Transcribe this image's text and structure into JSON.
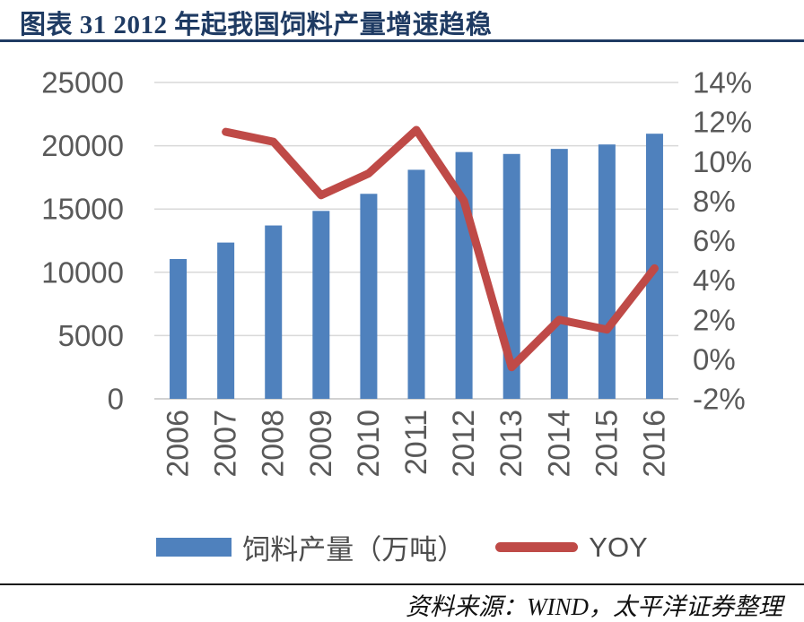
{
  "header": {
    "title": "图表 31 2012 年起我国饲料产量增速趋稳"
  },
  "legend": {
    "bars_label": "饲料产量（万吨）",
    "line_label": "YOY"
  },
  "footer": {
    "source": "资料来源：WIND，太平洋证券整理"
  },
  "colors": {
    "bar": "#4f81bd",
    "line": "#bf4a47",
    "title": "#1f3b63",
    "axis_text": "#595959",
    "gridline": "#d9d9d9"
  },
  "chart_data": {
    "type": "bar+line",
    "title": "图表 31 2012 年起我国饲料产量增速趋稳",
    "categories": [
      "2006",
      "2007",
      "2008",
      "2009",
      "2010",
      "2011",
      "2012",
      "2013",
      "2014",
      "2015",
      "2016"
    ],
    "series": [
      {
        "name": "饲料产量（万吨）",
        "type": "bar",
        "y_axis": "left",
        "color": "#4f81bd",
        "values": [
          11050,
          12350,
          13700,
          14850,
          16200,
          18100,
          19500,
          19350,
          19750,
          20100,
          20950
        ]
      },
      {
        "name": "YOY",
        "type": "line",
        "y_axis": "right",
        "color": "#bf4a47",
        "unit": "percent",
        "values": [
          null,
          11.5,
          11.0,
          8.3,
          9.4,
          11.6,
          8.0,
          -0.4,
          2.0,
          1.5,
          4.6
        ]
      }
    ],
    "y_left": {
      "min": 0,
      "max": 25000,
      "step": 5000,
      "ticks": [
        "0",
        "5000",
        "10000",
        "15000",
        "20000",
        "25000"
      ],
      "tick_values": [
        0,
        5000,
        10000,
        15000,
        20000,
        25000
      ]
    },
    "y_right": {
      "min": -2,
      "max": 14,
      "step": 2,
      "ticks": [
        "-2%",
        "0%",
        "2%",
        "4%",
        "6%",
        "8%",
        "10%",
        "12%",
        "14%"
      ],
      "tick_values": [
        -2,
        0,
        2,
        4,
        6,
        8,
        10,
        12,
        14
      ]
    },
    "grid": true,
    "legend_position": "bottom",
    "source": "资料来源：WIND，太平洋证券整理"
  }
}
